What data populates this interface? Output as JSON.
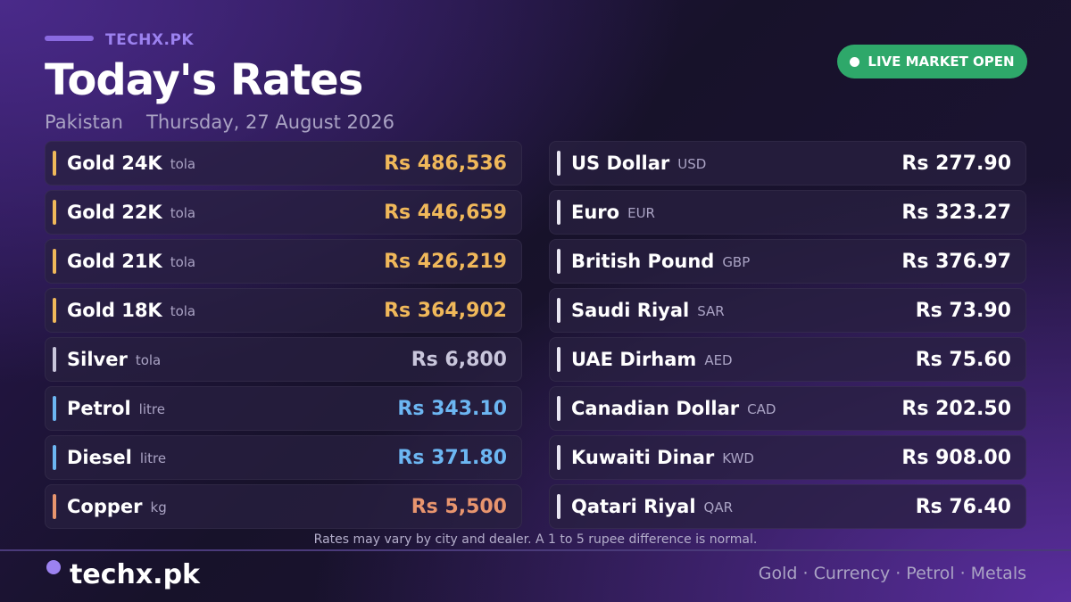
{
  "header": {
    "brand": "TECHX.PK",
    "title": "Today's Rates",
    "location": "Pakistan",
    "date": "Thursday, 27 August 2026",
    "badge": "LIVE MARKET OPEN"
  },
  "commodities": [
    {
      "name": "Gold 24K",
      "unit": "tola",
      "price": "Rs 486,536",
      "color": "#f0b85a"
    },
    {
      "name": "Gold 22K",
      "unit": "tola",
      "price": "Rs 446,659",
      "color": "#f0b85a"
    },
    {
      "name": "Gold 21K",
      "unit": "tola",
      "price": "Rs 426,219",
      "color": "#f0b85a"
    },
    {
      "name": "Gold 18K",
      "unit": "tola",
      "price": "Rs 364,902",
      "color": "#f0b85a"
    },
    {
      "name": "Silver",
      "unit": "tola",
      "price": "Rs 6,800",
      "color": "#c9c6dc"
    },
    {
      "name": "Petrol",
      "unit": "litre",
      "price": "Rs 343.10",
      "color": "#6cb6f2"
    },
    {
      "name": "Diesel",
      "unit": "litre",
      "price": "Rs 371.80",
      "color": "#6cb6f2"
    },
    {
      "name": "Copper",
      "unit": "kg",
      "price": "Rs 5,500",
      "color": "#e8956e"
    }
  ],
  "currencies": [
    {
      "name": "US Dollar",
      "code": "USD",
      "price": "Rs 277.90"
    },
    {
      "name": "Euro",
      "code": "EUR",
      "price": "Rs 323.27"
    },
    {
      "name": "British Pound",
      "code": "GBP",
      "price": "Rs 376.97"
    },
    {
      "name": "Saudi Riyal",
      "code": "SAR",
      "price": "Rs 73.90"
    },
    {
      "name": "UAE Dirham",
      "code": "AED",
      "price": "Rs 75.60"
    },
    {
      "name": "Canadian Dollar",
      "code": "CAD",
      "price": "Rs 202.50"
    },
    {
      "name": "Kuwaiti Dinar",
      "code": "KWD",
      "price": "Rs 908.00"
    },
    {
      "name": "Qatari Riyal",
      "code": "QAR",
      "price": "Rs 76.40"
    }
  ],
  "footer": {
    "note": "Rates may vary by city and dealer. A 1 to 5 rupee difference is normal.",
    "brand": "techx.pk",
    "tags": "Gold · Currency · Petrol · Metals"
  }
}
